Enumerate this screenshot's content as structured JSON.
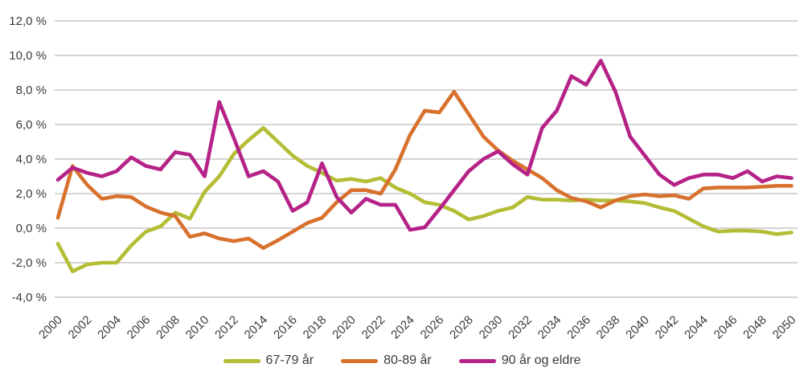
{
  "chart_data": {
    "type": "line",
    "title": "",
    "grid": true,
    "legend_position": "bottom",
    "x": [
      2000,
      2001,
      2002,
      2003,
      2004,
      2005,
      2006,
      2007,
      2008,
      2009,
      2010,
      2011,
      2012,
      2013,
      2014,
      2015,
      2016,
      2017,
      2018,
      2019,
      2020,
      2021,
      2022,
      2023,
      2024,
      2025,
      2026,
      2027,
      2028,
      2029,
      2030,
      2031,
      2032,
      2033,
      2034,
      2035,
      2036,
      2037,
      2038,
      2039,
      2040,
      2041,
      2042,
      2043,
      2044,
      2045,
      2046,
      2047,
      2048,
      2049,
      2050
    ],
    "x_tick_labels": [
      "2000",
      "2002",
      "2004",
      "2006",
      "2008",
      "2010",
      "2012",
      "2014",
      "2016",
      "2018",
      "2020",
      "2022",
      "2024",
      "2026",
      "2028",
      "2030",
      "2032",
      "2034",
      "2036",
      "2038",
      "2040",
      "2042",
      "2044",
      "2046",
      "2048",
      "2050"
    ],
    "y_axis": {
      "min": -4,
      "max": 12,
      "step": 2,
      "unit": "%",
      "tick_labels": [
        "12,0 %",
        "10,0 %",
        "8,0 %",
        "6,0 %",
        "4,0 %",
        "2,0 %",
        "0,0 %",
        "-2,0 %",
        "-4,0 %"
      ]
    },
    "series": [
      {
        "name": "67-79 år",
        "color": "#b4bd35",
        "values": [
          -0.9,
          -2.5,
          -2.1,
          -2.0,
          -2.0,
          -1.0,
          -0.2,
          0.1,
          0.9,
          0.55,
          2.1,
          3.0,
          4.3,
          5.1,
          5.8,
          5.0,
          4.2,
          3.6,
          3.2,
          2.75,
          2.85,
          2.7,
          2.9,
          2.35,
          2.0,
          1.5,
          1.35,
          1.0,
          0.5,
          0.7,
          1.0,
          1.2,
          1.8,
          1.65,
          1.65,
          1.6,
          1.65,
          1.6,
          1.6,
          1.55,
          1.45,
          1.2,
          1.0,
          0.55,
          0.1,
          -0.2,
          -0.15,
          -0.15,
          -0.2,
          -0.35,
          -0.25
        ]
      },
      {
        "name": "80-89 år",
        "color": "#d8712e",
        "values": [
          0.6,
          3.6,
          2.5,
          1.7,
          1.85,
          1.8,
          1.25,
          0.9,
          0.7,
          -0.5,
          -0.3,
          -0.6,
          -0.75,
          -0.6,
          -1.15,
          -0.7,
          -0.2,
          0.3,
          0.6,
          1.5,
          2.2,
          2.2,
          2.0,
          3.4,
          5.4,
          6.8,
          6.7,
          7.9,
          6.6,
          5.3,
          4.5,
          3.9,
          3.4,
          2.9,
          2.2,
          1.75,
          1.55,
          1.2,
          1.6,
          1.85,
          1.95,
          1.85,
          1.9,
          1.7,
          2.3,
          2.35,
          2.35,
          2.35,
          2.4,
          2.45,
          2.45
        ]
      },
      {
        "name": "90 år og eldre",
        "color": "#b52288",
        "values": [
          2.8,
          3.5,
          3.2,
          3.0,
          3.3,
          4.1,
          3.6,
          3.4,
          4.4,
          4.25,
          3.0,
          7.3,
          5.2,
          3.0,
          3.3,
          2.7,
          1.0,
          1.5,
          3.75,
          1.8,
          0.9,
          1.7,
          1.35,
          1.35,
          -0.1,
          0.05,
          1.1,
          2.2,
          3.3,
          4.0,
          4.45,
          3.7,
          3.1,
          5.8,
          6.8,
          8.8,
          8.3,
          9.7,
          7.9,
          5.3,
          4.2,
          3.1,
          2.5,
          2.9,
          3.1,
          3.1,
          2.9,
          3.3,
          2.7,
          3.0,
          2.9
        ]
      }
    ],
    "style": {
      "gridline_color": "#a9a9a9",
      "axis_text_color": "#3a3a3a",
      "line_width": 4.6
    }
  }
}
